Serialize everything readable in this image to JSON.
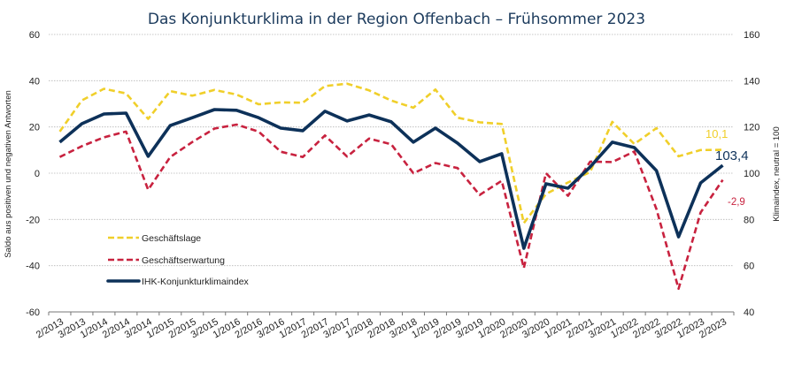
{
  "chart_data": {
    "type": "line",
    "title": "Das Konjunkturklima in der Region Offenbach – Frühsommer 2023",
    "xlabel": "",
    "ylabel": "Saldo aus positiven und negativen Antworten",
    "y2label": "Klimaindex, neutral = 100",
    "ylim": [
      -60,
      60
    ],
    "y2lim": [
      40,
      160
    ],
    "yticks": [
      60,
      40,
      20,
      0,
      -20,
      -40,
      -60
    ],
    "y2ticks": [
      160,
      140,
      120,
      100,
      80,
      60,
      40
    ],
    "grid": true,
    "legend_position": "bottom-left",
    "categories": [
      "2/2013",
      "3/2013",
      "1/2014",
      "2/2014",
      "3/2014",
      "1/2015",
      "2/2015",
      "3/2015",
      "1/2016",
      "2/2016",
      "3/2016",
      "1/2017",
      "2/2017",
      "3/2017",
      "1/2018",
      "2/2018",
      "3/2018",
      "1/2019",
      "2/2019",
      "3/2019",
      "1/2020",
      "2/2020",
      "3/2020",
      "1/2021",
      "2/2021",
      "3/2021",
      "1/2022",
      "2/2022",
      "3/2022",
      "1/2023",
      "2/2023"
    ],
    "series": [
      {
        "name": "Geschäftslage",
        "axis": "left",
        "style": "dashed",
        "color": "#f0cf2a",
        "values": [
          18,
          31.5,
          36.5,
          34.5,
          23.5,
          35.5,
          33.5,
          36,
          34,
          29.8,
          30.6,
          30.5,
          37.7,
          38.7,
          35.8,
          31.4,
          28.3,
          36.2,
          24,
          22,
          21.3,
          -21.6,
          -9,
          -4,
          0.5,
          22.2,
          12.6,
          19.5,
          7.3,
          10,
          10.1
        ],
        "end_label": "10,1"
      },
      {
        "name": "Geschäftserwartung",
        "axis": "left",
        "style": "dashed",
        "color": "#c8223f",
        "values": [
          7,
          11.7,
          15.5,
          18,
          -7.2,
          7,
          13.5,
          19.3,
          21,
          18,
          9.3,
          7,
          16.3,
          7.2,
          15,
          12.5,
          0,
          4.4,
          2.2,
          -9.4,
          -3.3,
          -41,
          0,
          -9.8,
          5,
          4.8,
          9.4,
          -15.5,
          -50,
          -17,
          -2.9
        ],
        "end_label": "-2,9"
      },
      {
        "name": "IHK-Konjunkturklimaindex",
        "axis": "right",
        "style": "solid",
        "color": "#0d3159",
        "values": [
          113.4,
          121.4,
          125.6,
          126,
          107.3,
          120.6,
          124,
          127.5,
          127.2,
          124,
          119.5,
          118.4,
          126.8,
          122.6,
          125.2,
          122.2,
          113.4,
          119.5,
          113,
          105,
          108.4,
          67.5,
          95.4,
          93.5,
          102.7,
          113.4,
          111.1,
          101.1,
          72.5,
          95.8,
          103.4
        ],
        "end_label": "103,4"
      }
    ]
  }
}
